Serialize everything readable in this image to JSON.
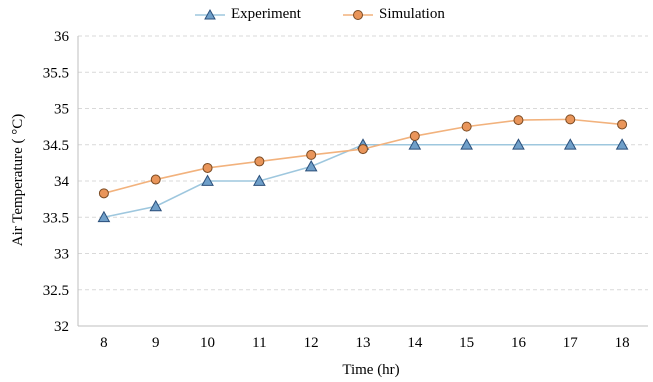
{
  "chart_data": {
    "type": "line",
    "title": "",
    "xlabel": "Time  (hr)",
    "ylabel": "Air Temperature  ( °C)",
    "categories": [
      "8",
      "9",
      "10",
      "11",
      "12",
      "13",
      "14",
      "15",
      "16",
      "17",
      "18"
    ],
    "x": [
      8,
      9,
      10,
      11,
      12,
      13,
      14,
      15,
      16,
      17,
      18
    ],
    "xlim": [
      7.5,
      18.5
    ],
    "ylim": [
      32,
      36
    ],
    "yticks": [
      "32",
      "32.5",
      "33",
      "33.5",
      "34",
      "34.5",
      "35",
      "35.5",
      "36"
    ],
    "grid": true,
    "legend_position": "top",
    "series": [
      {
        "name": "Experiment",
        "marker": "triangle",
        "line_color": "#9ec7de",
        "marker_fill": "#6f9fc9",
        "marker_stroke": "#2b4f7a",
        "values": [
          33.5,
          33.65,
          34.0,
          34.0,
          34.2,
          34.5,
          34.5,
          34.5,
          34.5,
          34.5,
          34.5
        ]
      },
      {
        "name": "Simulation",
        "marker": "circle",
        "line_color": "#f2b27d",
        "marker_fill": "#e9955a",
        "marker_stroke": "#7a4a22",
        "values": [
          33.83,
          34.02,
          34.18,
          34.27,
          34.36,
          34.44,
          34.62,
          34.75,
          34.84,
          34.85,
          34.78
        ]
      }
    ]
  }
}
